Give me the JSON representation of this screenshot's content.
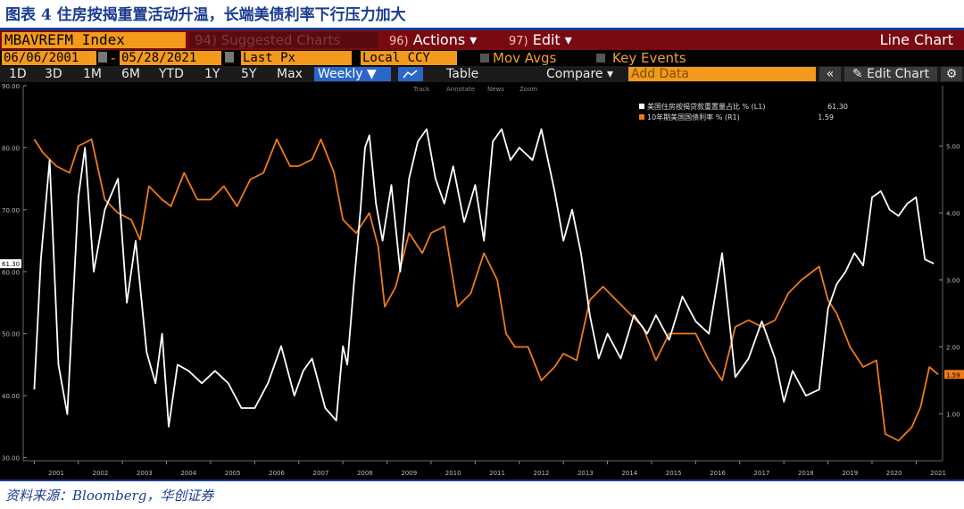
{
  "caption": "图表 4 住房按揭重置活动升温，长端美债利率下行压力加大",
  "source": "资料来源：Bloomberg，华创证券",
  "toolbar": {
    "security": "MBAVREFM Index",
    "suggested": "94) Suggested Charts",
    "actions_num": "96)",
    "actions": "Actions ▾",
    "edit_num": "97)",
    "edit": "Edit ▾",
    "chart_type": "Line Chart",
    "date_from": "06/06/2001",
    "date_sep": "-",
    "date_to": "05/28/2021",
    "field": "Last Px",
    "currency": "Local CCY",
    "mov_avgs": "Mov Avgs",
    "key_events": "Key Events",
    "ranges": [
      "1D",
      "3D",
      "1M",
      "6M",
      "YTD",
      "1Y",
      "5Y",
      "Max"
    ],
    "frequency": "Weekly ▼",
    "table": "Table",
    "compare": "Compare ▾",
    "add_data_placeholder": "Add Data",
    "edit_chart": "Edit Chart",
    "annot_tools": [
      "Track",
      "Annotate",
      "News",
      "Zoom"
    ]
  },
  "colors": {
    "bg": "#000000",
    "series1": "#ffffff",
    "series2": "#f07a1a",
    "accent": "#f39a1d",
    "title": "#1a3d8f"
  },
  "chart_data": {
    "type": "line",
    "legend_position": "top-right",
    "grid": false,
    "x_years": [
      "2001",
      "2002",
      "2003",
      "2004",
      "2005",
      "2006",
      "2007",
      "2008",
      "2009",
      "2010",
      "2011",
      "2012",
      "2013",
      "2014",
      "2015",
      "2016",
      "2017",
      "2018",
      "2019",
      "2020",
      "2021"
    ],
    "y_left": {
      "range": [
        29.5,
        90
      ],
      "ticks": [
        "90.00",
        "80.00",
        "70.00",
        "60.00",
        "50.00",
        "40.00",
        "30.00"
      ]
    },
    "y_right": {
      "range": [
        0.3,
        5.9
      ],
      "ticks": [
        "5.00",
        "4.00",
        "3.00",
        "2.00",
        "1.00"
      ]
    },
    "series": [
      {
        "name": "美国住房按揭贷款重置量占比 % (L1)",
        "last": "61.30",
        "axis": "left",
        "color": "#ffffff",
        "x": [
          2001.0,
          2001.15,
          2001.35,
          2001.55,
          2001.75,
          2002.0,
          2002.15,
          2002.35,
          2002.6,
          2002.9,
          2003.1,
          2003.3,
          2003.55,
          2003.75,
          2003.9,
          2004.05,
          2004.25,
          2004.5,
          2004.8,
          2005.1,
          2005.4,
          2005.7,
          2006.0,
          2006.3,
          2006.6,
          2006.9,
          2007.1,
          2007.3,
          2007.6,
          2007.85,
          2008.0,
          2008.1,
          2008.25,
          2008.4,
          2008.5,
          2008.6,
          2008.75,
          2008.9,
          2009.1,
          2009.3,
          2009.5,
          2009.7,
          2009.9,
          2010.1,
          2010.3,
          2010.5,
          2010.75,
          2011.0,
          2011.2,
          2011.4,
          2011.6,
          2011.8,
          2012.0,
          2012.3,
          2012.5,
          2012.8,
          2013.0,
          2013.2,
          2013.4,
          2013.6,
          2013.8,
          2014.0,
          2014.3,
          2014.6,
          2014.9,
          2015.1,
          2015.4,
          2015.7,
          2016.0,
          2016.3,
          2016.6,
          2016.9,
          2017.2,
          2017.5,
          2017.8,
          2018.0,
          2018.2,
          2018.5,
          2018.8,
          2019.0,
          2019.2,
          2019.4,
          2019.6,
          2019.8,
          2020.0,
          2020.2,
          2020.4,
          2020.6,
          2020.8,
          2021.0,
          2021.2,
          2021.4
        ],
        "y": [
          41,
          62,
          78,
          45,
          37,
          72,
          80,
          60,
          70,
          75,
          55,
          65,
          47,
          42,
          50,
          35,
          45,
          44,
          42,
          44,
          42,
          38,
          38,
          42,
          48,
          40,
          44,
          46,
          38,
          36,
          48,
          45,
          58,
          70,
          80,
          82,
          71,
          65,
          74,
          60,
          75,
          81,
          83,
          75,
          71,
          77,
          68,
          74,
          65,
          81,
          83,
          78,
          80,
          78,
          83,
          73,
          65,
          70,
          63,
          53,
          46,
          50,
          46,
          53,
          50,
          53,
          49,
          56,
          52,
          50,
          63,
          43,
          46,
          52,
          46,
          39,
          44,
          40,
          41,
          54,
          58,
          60,
          63,
          61,
          72,
          73,
          70,
          69,
          71,
          72,
          62,
          61.3
        ]
      },
      {
        "name": "10年期美国国债利率 % (R1)",
        "last": "1.59",
        "axis": "right",
        "color": "#f07a1a",
        "x": [
          2001.0,
          2001.2,
          2001.5,
          2001.8,
          2002.0,
          2002.3,
          2002.6,
          2002.9,
          2003.2,
          2003.4,
          2003.6,
          2003.9,
          2004.1,
          2004.4,
          2004.7,
          2005.0,
          2005.3,
          2005.6,
          2005.9,
          2006.2,
          2006.5,
          2006.8,
          2007.0,
          2007.3,
          2007.5,
          2007.8,
          2008.0,
          2008.3,
          2008.6,
          2008.8,
          2008.95,
          2009.2,
          2009.5,
          2009.8,
          2010.0,
          2010.3,
          2010.6,
          2010.9,
          2011.2,
          2011.5,
          2011.7,
          2011.9,
          2012.2,
          2012.5,
          2012.8,
          2013.0,
          2013.3,
          2013.6,
          2013.9,
          2014.2,
          2014.5,
          2014.8,
          2015.1,
          2015.4,
          2015.7,
          2016.0,
          2016.3,
          2016.6,
          2016.9,
          2017.2,
          2017.5,
          2017.8,
          2018.1,
          2018.4,
          2018.8,
          2019.0,
          2019.2,
          2019.5,
          2019.8,
          2020.1,
          2020.3,
          2020.6,
          2020.9,
          2021.1,
          2021.3,
          2021.5
        ],
        "y": [
          5.1,
          4.9,
          4.7,
          4.6,
          5.0,
          5.1,
          4.2,
          4.0,
          3.9,
          3.6,
          4.4,
          4.2,
          4.1,
          4.6,
          4.2,
          4.2,
          4.4,
          4.1,
          4.5,
          4.6,
          5.1,
          4.7,
          4.7,
          4.8,
          5.1,
          4.6,
          3.9,
          3.7,
          4.0,
          3.5,
          2.6,
          2.9,
          3.7,
          3.4,
          3.7,
          3.8,
          2.6,
          2.8,
          3.4,
          3.0,
          2.2,
          2.0,
          2.0,
          1.5,
          1.7,
          1.9,
          1.8,
          2.7,
          2.9,
          2.7,
          2.5,
          2.3,
          1.8,
          2.2,
          2.2,
          2.2,
          1.8,
          1.5,
          2.3,
          2.4,
          2.3,
          2.4,
          2.8,
          3.0,
          3.2,
          2.7,
          2.5,
          2.0,
          1.7,
          1.8,
          0.7,
          0.6,
          0.8,
          1.1,
          1.7,
          1.59
        ]
      }
    ]
  }
}
